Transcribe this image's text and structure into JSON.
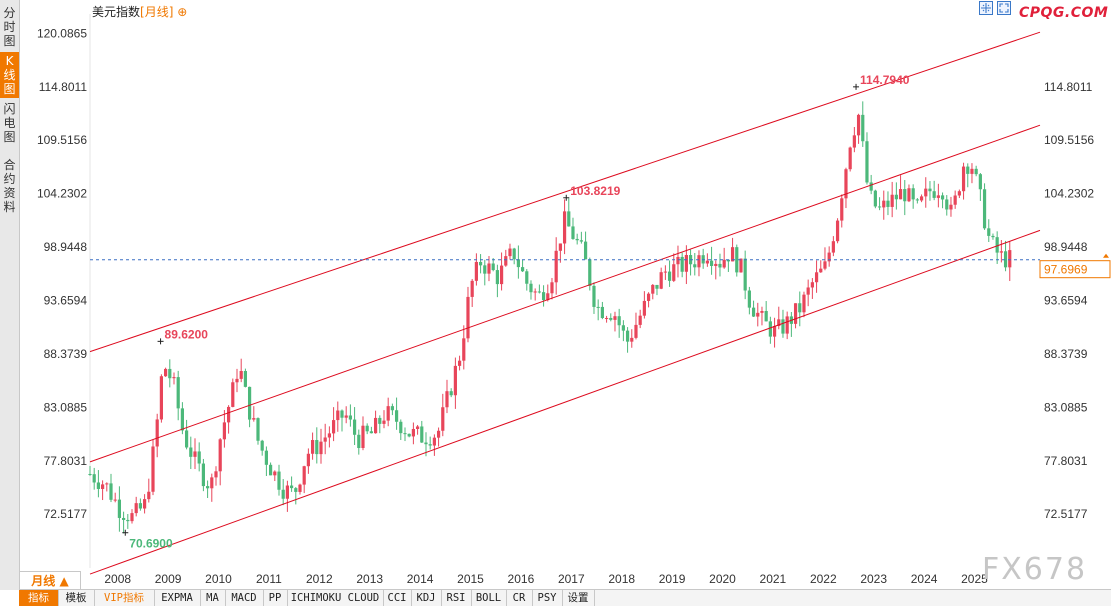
{
  "header": {
    "title": "美元指数",
    "period": "月线",
    "logo": "CPQG.COM",
    "watermark": "FX678"
  },
  "side_tabs": [
    {
      "label": "分时图",
      "active": false
    },
    {
      "label": "K线图",
      "active": true
    },
    {
      "label": "闪电图",
      "active": false
    },
    {
      "label": "合约资料",
      "active": false
    }
  ],
  "period_tab": "月线 ▲",
  "bottom_tabs": [
    "指标",
    "模板",
    "VIP指标",
    "EXPMA",
    "MA",
    "MACD",
    "PP",
    "ICHIMOKU CLOUD",
    "CCI",
    "KDJ",
    "RSI",
    "BOLL",
    "CR",
    "PSY",
    "设置"
  ],
  "colors": {
    "up": "#e8455a",
    "down": "#4cb87a",
    "channel": "#dd0a1e",
    "accent": "#f07800"
  },
  "chart_data": {
    "type": "candlestick",
    "y_ticks": [
      "120.0865",
      "114.8011",
      "109.5156",
      "104.2302",
      "98.9448",
      "93.6594",
      "88.3739",
      "83.0885",
      "77.8031",
      "72.5177"
    ],
    "ylim": [
      67.2,
      122.0
    ],
    "x_labels": [
      "2008",
      "2009",
      "2010",
      "2011",
      "2012",
      "2013",
      "2014",
      "2015",
      "2016",
      "2017",
      "2018",
      "2019",
      "2020",
      "2021",
      "2022",
      "2023",
      "2024",
      "2025"
    ],
    "xlim": [
      2007.5,
      2026.35
    ],
    "current_price": "97.6969",
    "current_price_value": 97.6969,
    "annotations": [
      {
        "text": "114.7940",
        "x": 2022.7,
        "y": 114.794,
        "kind": "high"
      },
      {
        "text": "103.8219",
        "x": 2016.95,
        "y": 103.8219,
        "kind": "high"
      },
      {
        "text": "89.6200",
        "x": 2008.9,
        "y": 89.62,
        "kind": "high"
      },
      {
        "text": "70.6900",
        "x": 2008.2,
        "y": 70.69,
        "kind": "low"
      }
    ],
    "channel_lines": [
      {
        "x1": 2007.5,
        "y1": 88.6,
        "x2": 2026.35,
        "y2": 120.2
      },
      {
        "x1": 2007.5,
        "y1": 77.7,
        "x2": 2026.35,
        "y2": 111.0
      },
      {
        "x1": 2007.5,
        "y1": 66.6,
        "x2": 2026.35,
        "y2": 100.6
      }
    ],
    "closes": [
      {
        "x": 2007.5,
        "y": 76.5
      },
      {
        "x": 2007.8,
        "y": 75.5
      },
      {
        "x": 2008.1,
        "y": 73.0
      },
      {
        "x": 2008.35,
        "y": 72.2
      },
      {
        "x": 2008.6,
        "y": 73.5
      },
      {
        "x": 2008.8,
        "y": 80.0
      },
      {
        "x": 2008.95,
        "y": 87.5
      },
      {
        "x": 2009.15,
        "y": 85.5
      },
      {
        "x": 2009.35,
        "y": 80.5
      },
      {
        "x": 2009.6,
        "y": 77.5
      },
      {
        "x": 2009.9,
        "y": 75.2
      },
      {
        "x": 2010.1,
        "y": 80.5
      },
      {
        "x": 2010.35,
        "y": 85.0
      },
      {
        "x": 2010.45,
        "y": 87.5
      },
      {
        "x": 2010.6,
        "y": 84.0
      },
      {
        "x": 2010.85,
        "y": 79.5
      },
      {
        "x": 2011.1,
        "y": 77.0
      },
      {
        "x": 2011.35,
        "y": 75.0
      },
      {
        "x": 2011.55,
        "y": 74.5
      },
      {
        "x": 2011.8,
        "y": 78.5
      },
      {
        "x": 2012.05,
        "y": 79.5
      },
      {
        "x": 2012.3,
        "y": 81.0
      },
      {
        "x": 2012.55,
        "y": 82.5
      },
      {
        "x": 2012.8,
        "y": 80.0
      },
      {
        "x": 2013.1,
        "y": 80.5
      },
      {
        "x": 2013.35,
        "y": 82.5
      },
      {
        "x": 2013.6,
        "y": 81.8
      },
      {
        "x": 2013.85,
        "y": 80.5
      },
      {
        "x": 2014.1,
        "y": 80.2
      },
      {
        "x": 2014.4,
        "y": 80.5
      },
      {
        "x": 2014.6,
        "y": 84.0
      },
      {
        "x": 2014.85,
        "y": 88.5
      },
      {
        "x": 2015.05,
        "y": 95.0
      },
      {
        "x": 2015.25,
        "y": 97.5
      },
      {
        "x": 2015.6,
        "y": 96.0
      },
      {
        "x": 2015.9,
        "y": 98.5
      },
      {
        "x": 2016.15,
        "y": 95.5
      },
      {
        "x": 2016.4,
        "y": 94.0
      },
      {
        "x": 2016.65,
        "y": 96.0
      },
      {
        "x": 2016.9,
        "y": 101.5
      },
      {
        "x": 2017.05,
        "y": 100.5
      },
      {
        "x": 2017.3,
        "y": 98.0
      },
      {
        "x": 2017.55,
        "y": 93.0
      },
      {
        "x": 2017.9,
        "y": 92.5
      },
      {
        "x": 2018.15,
        "y": 89.5
      },
      {
        "x": 2018.4,
        "y": 92.0
      },
      {
        "x": 2018.65,
        "y": 94.5
      },
      {
        "x": 2018.9,
        "y": 96.5
      },
      {
        "x": 2019.2,
        "y": 97.0
      },
      {
        "x": 2019.45,
        "y": 97.5
      },
      {
        "x": 2019.75,
        "y": 98.5
      },
      {
        "x": 2020.0,
        "y": 97.5
      },
      {
        "x": 2020.2,
        "y": 98.5
      },
      {
        "x": 2020.4,
        "y": 97.0
      },
      {
        "x": 2020.6,
        "y": 93.5
      },
      {
        "x": 2020.85,
        "y": 91.5
      },
      {
        "x": 2021.1,
        "y": 90.5
      },
      {
        "x": 2021.35,
        "y": 91.5
      },
      {
        "x": 2021.6,
        "y": 93.0
      },
      {
        "x": 2021.85,
        "y": 95.5
      },
      {
        "x": 2022.1,
        "y": 97.0
      },
      {
        "x": 2022.35,
        "y": 102.5
      },
      {
        "x": 2022.6,
        "y": 110.0
      },
      {
        "x": 2022.75,
        "y": 112.0
      },
      {
        "x": 2022.95,
        "y": 104.0
      },
      {
        "x": 2023.15,
        "y": 102.5
      },
      {
        "x": 2023.4,
        "y": 103.5
      },
      {
        "x": 2023.65,
        "y": 104.5
      },
      {
        "x": 2023.9,
        "y": 102.5
      },
      {
        "x": 2024.15,
        "y": 104.5
      },
      {
        "x": 2024.4,
        "y": 105.0
      },
      {
        "x": 2024.6,
        "y": 102.0
      },
      {
        "x": 2024.85,
        "y": 107.5
      },
      {
        "x": 2025.0,
        "y": 107.0
      },
      {
        "x": 2025.15,
        "y": 104.0
      },
      {
        "x": 2025.35,
        "y": 99.5
      },
      {
        "x": 2025.55,
        "y": 98.0
      },
      {
        "x": 2025.75,
        "y": 97.7
      }
    ]
  }
}
